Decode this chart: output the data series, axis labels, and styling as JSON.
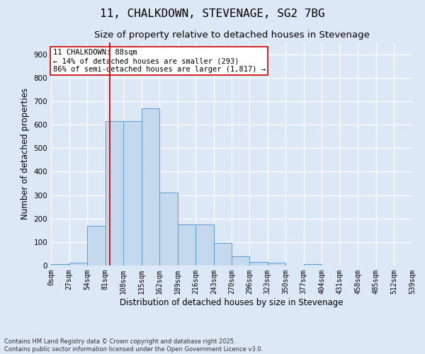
{
  "title": "11, CHALKDOWN, STEVENAGE, SG2 7BG",
  "subtitle": "Size of property relative to detached houses in Stevenage",
  "xlabel": "Distribution of detached houses by size in Stevenage",
  "ylabel": "Number of detached properties",
  "footnote1": "Contains HM Land Registry data © Crown copyright and database right 2025.",
  "footnote2": "Contains public sector information licensed under the Open Government Licence v3.0.",
  "annotation_line1": "11 CHALKDOWN: 88sqm",
  "annotation_line2": "← 14% of detached houses are smaller (293)",
  "annotation_line3": "86% of semi-detached houses are larger (1,817) →",
  "bin_edges": [
    0,
    27,
    54,
    81,
    108,
    135,
    162,
    189,
    216,
    243,
    270,
    296,
    323,
    350,
    377,
    404,
    431,
    458,
    485,
    512,
    539
  ],
  "bar_heights": [
    5,
    12,
    170,
    615,
    615,
    670,
    310,
    175,
    175,
    98,
    40,
    15,
    12,
    0,
    7,
    0,
    0,
    0,
    0,
    0
  ],
  "bar_color": "#c5d9ee",
  "bar_edge_color": "#5a9fd4",
  "vline_color": "#cc0000",
  "vline_x": 88,
  "ylim": [
    0,
    950
  ],
  "yticks": [
    0,
    100,
    200,
    300,
    400,
    500,
    600,
    700,
    800,
    900
  ],
  "background_color": "#dce8f5",
  "axes_background": "#dce8f5",
  "grid_color": "#ffffff",
  "annotation_box_facecolor": "#ffffff",
  "annotation_box_edgecolor": "#cc0000",
  "title_fontsize": 11.5,
  "subtitle_fontsize": 9.5,
  "tick_label_fontsize": 7,
  "axis_label_fontsize": 8.5,
  "annotation_fontsize": 7.5,
  "footnote_fontsize": 6
}
